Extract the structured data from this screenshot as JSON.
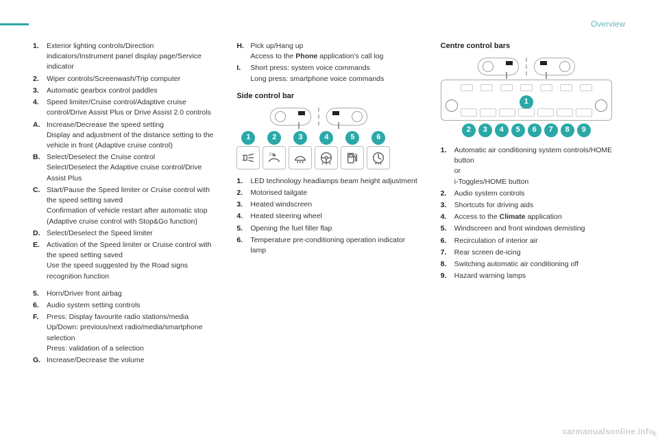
{
  "header": {
    "section": "Overview"
  },
  "footer": {
    "watermark": "carmanualsonline.info",
    "page": "5"
  },
  "col1_a": [
    {
      "label": "1.",
      "lines": [
        "Exterior lighting controls/Direction indicators/Instrument panel display page/Service indicator"
      ]
    },
    {
      "label": "2.",
      "lines": [
        "Wiper controls/Screenwash/Trip computer"
      ]
    },
    {
      "label": "3.",
      "lines": [
        "Automatic gearbox control paddles"
      ]
    },
    {
      "label": "4.",
      "lines": [
        "Speed limiter/Cruise control/Adaptive cruise control/Drive Assist Plus or Drive Assist 2.0 controls"
      ]
    },
    {
      "label": "A.",
      "lines": [
        "Increase/Decrease the speed setting",
        "Display and adjustment of the distance setting to the vehicle in front (Adaptive cruise control)"
      ]
    },
    {
      "label": "B.",
      "lines": [
        "Select/Deselect the Cruise control",
        "Select/Deselect the Adaptive cruise control/Drive Assist Plus"
      ]
    },
    {
      "label": "C.",
      "lines": [
        "Start/Pause the Speed limiter or Cruise control with the speed setting saved",
        "Confirmation of vehicle restart after automatic stop (Adaptive cruise control with Stop&Go function)"
      ]
    },
    {
      "label": "D.",
      "lines": [
        "Select/Deselect the Speed limiter"
      ]
    },
    {
      "label": "E.",
      "lines": [
        "Activation of the Speed limiter or Cruise control with the speed setting saved",
        "Use the speed suggested by the Road signs recognition function"
      ]
    }
  ],
  "col1_b": [
    {
      "label": "5.",
      "lines": [
        "Horn/Driver front airbag"
      ]
    },
    {
      "label": "6.",
      "lines": [
        "Audio system setting controls"
      ]
    },
    {
      "label": "F.",
      "lines": [
        "Press: Display favourite radio stations/media",
        "Up/Down: previous/next radio/media/smartphone selection",
        "Press: validation of a selection"
      ]
    },
    {
      "label": "G.",
      "lines": [
        "Increase/Decrease the volume"
      ]
    }
  ],
  "col2_top": [
    {
      "label": "H.",
      "lines": [
        "Pick up/Hang up",
        "Access to the <b>Phone</b> application's call log"
      ]
    },
    {
      "label": "I.",
      "lines": [
        "Short press: system voice commands",
        "Long press: smartphone voice commands"
      ]
    }
  ],
  "col2_heading": "Side control bar",
  "side_bar": {
    "badge_color": "#2aa8a8",
    "items": [
      {
        "n": "1",
        "icon": "headlamp"
      },
      {
        "n": "2",
        "icon": "tailgate"
      },
      {
        "n": "3",
        "icon": "windscreen"
      },
      {
        "n": "4",
        "icon": "steering"
      },
      {
        "n": "5",
        "icon": "fuel"
      },
      {
        "n": "6",
        "icon": "precondition"
      }
    ]
  },
  "col2_list": [
    {
      "label": "1.",
      "lines": [
        "LED technology headlamps beam height adjustment"
      ]
    },
    {
      "label": "2.",
      "lines": [
        "Motorised tailgate"
      ]
    },
    {
      "label": "3.",
      "lines": [
        "Heated windscreen"
      ]
    },
    {
      "label": "4.",
      "lines": [
        "Heated steering wheel"
      ]
    },
    {
      "label": "5.",
      "lines": [
        "Opening the fuel filler flap"
      ]
    },
    {
      "label": "6.",
      "lines": [
        "Temperature pre-conditioning operation indicator lamp"
      ]
    }
  ],
  "col3_heading": "Centre control bars",
  "centre_bar": {
    "badge_color": "#2aa8a8",
    "top_badge": "1",
    "row": [
      "2",
      "3",
      "4",
      "5",
      "6",
      "7",
      "8",
      "9"
    ]
  },
  "col3_list": [
    {
      "label": "1.",
      "lines": [
        "Automatic air conditioning system controls/HOME button",
        "or",
        "i-Toggles/HOME button"
      ]
    },
    {
      "label": "2.",
      "lines": [
        "Audio system controls"
      ]
    },
    {
      "label": "3.",
      "lines": [
        "Shortcuts for driving aids"
      ]
    },
    {
      "label": "4.",
      "lines": [
        "Access to the <b>Climate</b> application"
      ]
    },
    {
      "label": "5.",
      "lines": [
        "Windscreen and front windows demisting"
      ]
    },
    {
      "label": "6.",
      "lines": [
        "Recirculation of interior air"
      ]
    },
    {
      "label": "7.",
      "lines": [
        "Rear screen de-icing"
      ]
    },
    {
      "label": "8.",
      "lines": [
        "Switching automatic air conditioning off"
      ]
    },
    {
      "label": "9.",
      "lines": [
        "Hazard warning lamps"
      ]
    }
  ]
}
